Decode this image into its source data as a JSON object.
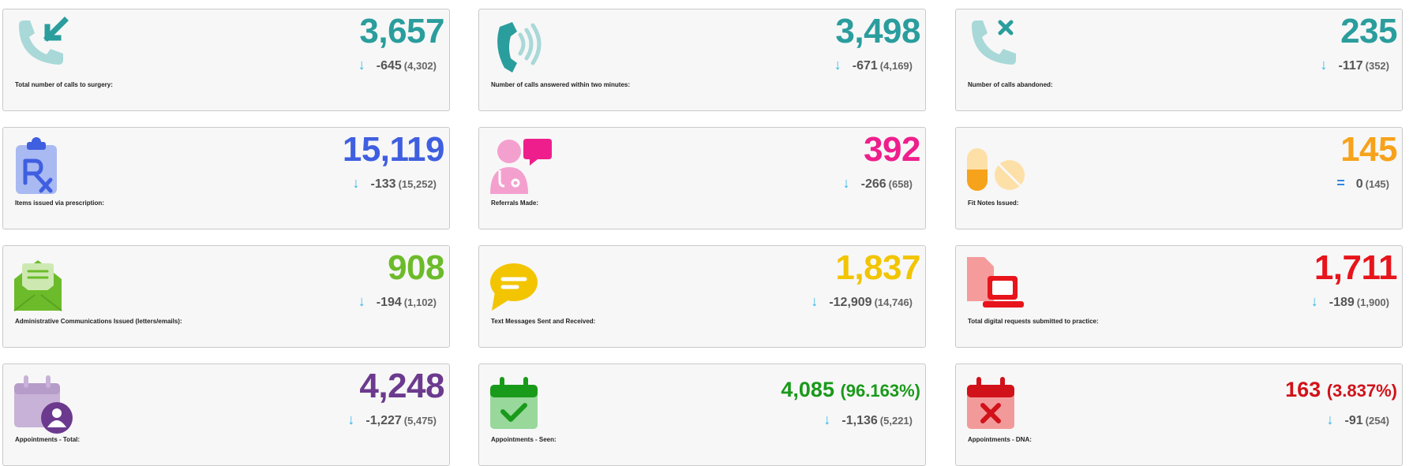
{
  "cards": [
    {
      "value": "3,657",
      "delta": "-645",
      "prev": "(4,302)",
      "label": "Total number of calls to surgery:",
      "color": "#2a9d9d",
      "arrow": "↓"
    },
    {
      "value": "3,498",
      "delta": "-671",
      "prev": "(4,169)",
      "label": "Number of calls answered within two minutes:",
      "color": "#2a9d9d",
      "arrow": "↓"
    },
    {
      "value": "235",
      "delta": "-117",
      "prev": "(352)",
      "label": "Number of calls abandoned:",
      "color": "#2a9d9d",
      "arrow": "↓"
    },
    {
      "value": "15,119",
      "delta": "-133",
      "prev": "(15,252)",
      "label": "Items issued via prescription:",
      "color": "#3f5fe0",
      "arrow": "↓"
    },
    {
      "value": "392",
      "delta": "-266",
      "prev": "(658)",
      "label": "Referrals Made:",
      "color": "#ee1f8c",
      "arrow": "↓"
    },
    {
      "value": "145",
      "delta": "0",
      "prev": "(145)",
      "label": "Fit Notes Issued:",
      "color": "#f7a21b",
      "arrow": "="
    },
    {
      "value": "908",
      "delta": "-194",
      "prev": "(1,102)",
      "label": "Administrative Communications Issued (letters/emails):",
      "color": "#6cbb2a",
      "arrow": "↓"
    },
    {
      "value": "1,837",
      "delta": "-12,909",
      "prev": "(14,746)",
      "label": "Text Messages Sent and Received:",
      "color": "#f2c500",
      "arrow": "↓"
    },
    {
      "value": "1,711",
      "delta": "-189",
      "prev": "(1,900)",
      "label": "Total digital requests submitted to practice:",
      "color": "#e8141b",
      "arrow": "↓"
    },
    {
      "value": "4,248",
      "delta": "-1,227",
      "prev": "(5,475)",
      "label": "Appointments - Total:",
      "color": "#6b3a8e",
      "arrow": "↓"
    },
    {
      "value": "4,085",
      "pct": "(96.163%)",
      "delta": "-1,136",
      "prev": "(5,221)",
      "label": "Appointments - Seen:",
      "color": "#1a9a1a",
      "arrow": "↓"
    },
    {
      "value": "163",
      "pct": "(3.837%)",
      "delta": "-91",
      "prev": "(254)",
      "label": "Appointments - DNA:",
      "color": "#d1121a",
      "arrow": "↓"
    }
  ],
  "icons": [
    "phone-incoming-icon",
    "phone-ringing-icon",
    "phone-missed-icon",
    "prescription-clipboard-icon",
    "doctor-speech-icon",
    "pills-icon",
    "open-envelope-icon",
    "chat-bubble-icon",
    "digital-request-laptop-icon",
    "calendar-user-icon",
    "calendar-check-icon",
    "calendar-cross-icon"
  ]
}
